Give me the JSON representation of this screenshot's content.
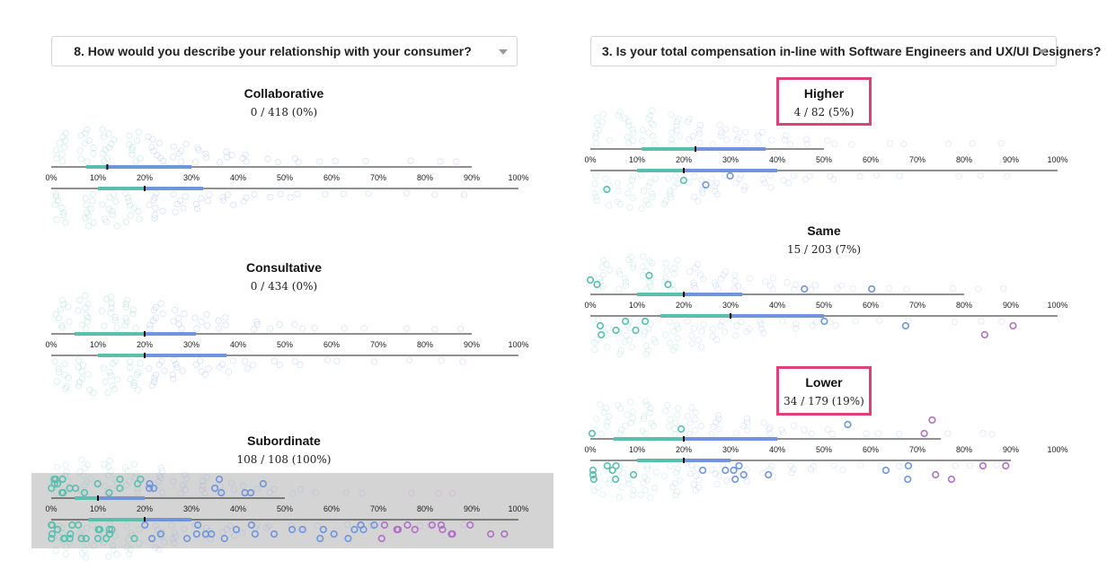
{
  "left": {
    "question": "8. How would you describe your relationship with your consumer?",
    "panels": [
      {
        "title": "Collaborative",
        "count": "0 / 418 (0%)"
      },
      {
        "title": "Consultative",
        "count": "0 / 434 (0%)"
      },
      {
        "title": "Subordinate",
        "count": "108 / 108 (100%)"
      }
    ]
  },
  "right": {
    "question": "3. Is your total compensation in-line with Software Engineers and UX/UI Designers?",
    "panels": [
      {
        "title": "Higher",
        "count": "4 / 82 (5%)"
      },
      {
        "title": "Same",
        "count": "15 / 203 (7%)"
      },
      {
        "title": "Lower",
        "count": "34 / 179 (19%)"
      }
    ]
  },
  "colors": {
    "teal": "#5bbfb0",
    "blue": "#6f95dc",
    "purple": "#b26fc8",
    "highlight": "#e0407a",
    "shade": "#d4d4d4"
  },
  "chart_data": [
    {
      "type": "scatter",
      "title": "Collaborative",
      "x_ticks": [
        "0%",
        "10%",
        "20%",
        "30%",
        "40%",
        "50%",
        "60%",
        "70%",
        "80%",
        "90%",
        "100%"
      ],
      "top": {
        "range": [
          0,
          90
        ],
        "box": [
          7.5,
          12,
          30
        ]
      },
      "bottom": {
        "range": [
          0,
          100
        ],
        "box": [
          10,
          20,
          32.5
        ]
      }
    },
    {
      "type": "scatter",
      "title": "Consultative",
      "x_ticks": [
        "0%",
        "10%",
        "20%",
        "30%",
        "40%",
        "50%",
        "60%",
        "70%",
        "80%",
        "90%",
        "100%"
      ],
      "top": {
        "range": [
          0,
          90
        ],
        "box": [
          5,
          20,
          31
        ]
      },
      "bottom": {
        "range": [
          0,
          100
        ],
        "box": [
          10,
          20,
          37.5
        ]
      }
    },
    {
      "type": "scatter",
      "title": "Subordinate",
      "x_ticks": [
        "0%",
        "10%",
        "20%",
        "30%",
        "40%",
        "50%",
        "60%",
        "70%",
        "80%",
        "90%",
        "100%"
      ],
      "top": {
        "range": [
          0,
          50
        ],
        "box": [
          5,
          10,
          20
        ]
      },
      "bottom": {
        "range": [
          0,
          100
        ],
        "box": [
          8,
          20,
          30
        ]
      }
    },
    {
      "type": "scatter",
      "title": "Higher",
      "x_ticks": [
        "0%",
        "10%",
        "20%",
        "30%",
        "40%",
        "50%",
        "60%",
        "70%",
        "80%",
        "90%",
        "100%"
      ],
      "top": {
        "range": [
          0,
          50
        ],
        "box": [
          11,
          22.5,
          37.5
        ]
      },
      "bottom": {
        "range": [
          0,
          100
        ],
        "box": [
          10,
          20,
          40
        ]
      }
    },
    {
      "type": "scatter",
      "title": "Same",
      "x_ticks": [
        "0%",
        "10%",
        "20%",
        "30%",
        "40%",
        "50%",
        "60%",
        "70%",
        "80%",
        "90%",
        "100%"
      ],
      "top": {
        "range": [
          0,
          80
        ],
        "box": [
          10,
          20,
          32.5
        ]
      },
      "bottom": {
        "range": [
          0,
          100
        ],
        "box": [
          15,
          30,
          50
        ]
      }
    },
    {
      "type": "scatter",
      "title": "Lower",
      "x_ticks": [
        "0%",
        "10%",
        "20%",
        "30%",
        "40%",
        "50%",
        "60%",
        "70%",
        "80%",
        "90%",
        "100%"
      ],
      "top": {
        "range": [
          0,
          75
        ],
        "box": [
          5,
          20,
          40
        ]
      },
      "bottom": {
        "range": [
          0,
          90
        ],
        "box": [
          10,
          20,
          30
        ]
      }
    }
  ]
}
